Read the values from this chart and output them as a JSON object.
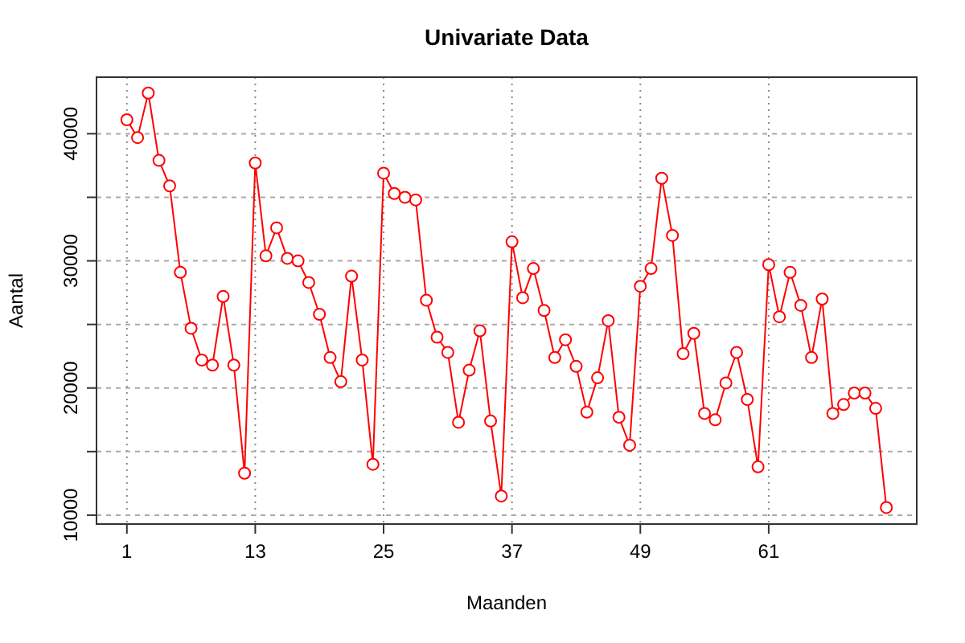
{
  "chart_data": {
    "type": "line",
    "title": "Univariate Data",
    "xlabel": "Maanden",
    "ylabel": "Aantal",
    "x": [
      1,
      2,
      3,
      4,
      5,
      6,
      7,
      8,
      9,
      10,
      11,
      12,
      13,
      14,
      15,
      16,
      17,
      18,
      19,
      20,
      21,
      22,
      23,
      24,
      25,
      26,
      27,
      28,
      29,
      30,
      31,
      32,
      33,
      34,
      35,
      36,
      37,
      38,
      39,
      40,
      41,
      42,
      43,
      44,
      45,
      46,
      47,
      48,
      49,
      50,
      51,
      52,
      53,
      54,
      55,
      56,
      57,
      58,
      59,
      60,
      61,
      62,
      63,
      64,
      65,
      66,
      67,
      68,
      69,
      70,
      71,
      72
    ],
    "series": [
      {
        "color": "#ff0000",
        "values": [
          41100,
          39700,
          43200,
          37900,
          35900,
          29100,
          24700,
          22200,
          21800,
          27200,
          21800,
          13300,
          37700,
          30400,
          32600,
          30200,
          30000,
          28300,
          25800,
          22400,
          20500,
          28800,
          22200,
          14000,
          36900,
          35300,
          35000,
          34800,
          26900,
          24000,
          22800,
          17300,
          21400,
          24500,
          17400,
          11500,
          31500,
          27100,
          29400,
          26100,
          22400,
          23800,
          21700,
          18100,
          20800,
          25300,
          17700,
          15500,
          28000,
          29400,
          36500,
          32000,
          22700,
          24300,
          18000,
          17500,
          20400,
          22800,
          19100,
          13800,
          29700,
          25600,
          29100,
          26500,
          22400,
          27000,
          18000,
          18700,
          19600,
          19600,
          18400,
          10600
        ]
      }
    ],
    "xlim": [
      -1.84,
      74.84
    ],
    "xticks": [
      1,
      13,
      25,
      37,
      49,
      61
    ],
    "ylim": [
      9300,
      44450
    ],
    "yticks": [
      10000,
      {
        "value": 15000,
        "label": null
      },
      20000,
      {
        "value": 25000,
        "label": null
      },
      30000,
      {
        "value": 35000,
        "label": null
      },
      40000
    ],
    "grid": true,
    "marker": "circle",
    "line_style": "solid"
  }
}
